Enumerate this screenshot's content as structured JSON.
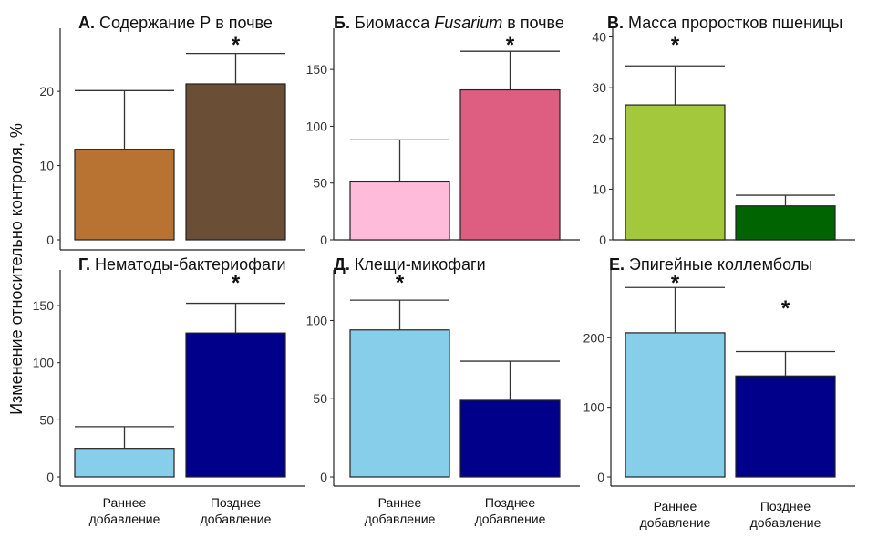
{
  "figure": {
    "ylabel": "Изменение относительно контроля, %",
    "categories": [
      "Раннее добавление",
      "Позднее добавление"
    ]
  },
  "chart_data": [
    {
      "type": "bar",
      "panel": "A",
      "title_prefix": "А.",
      "title_parts": [
        {
          "text": "Содержание Р в почве",
          "italic": false
        }
      ],
      "categories": [
        "Раннее добавление",
        "Позднее добавление"
      ],
      "values": [
        12.2,
        21.0
      ],
      "errors": [
        7.9,
        4.1
      ],
      "significant": [
        false,
        true
      ],
      "colors": [
        "#B87333",
        "#6B4E36"
      ],
      "ylim": [
        0,
        28
      ],
      "yticks": [
        0,
        10,
        20
      ],
      "show_xlabels": false
    },
    {
      "type": "bar",
      "panel": "B",
      "title_prefix": "Б.",
      "title_parts": [
        {
          "text": "Биомасса ",
          "italic": false
        },
        {
          "text": "Fusarium",
          "italic": true
        },
        {
          "text": " в почве",
          "italic": false
        }
      ],
      "categories": [
        "Раннее добавление",
        "Позднее добавление"
      ],
      "values": [
        51,
        132
      ],
      "errors": [
        37,
        34
      ],
      "significant": [
        false,
        true
      ],
      "colors": [
        "#FFBBD9",
        "#DE5E82"
      ],
      "ylim": [
        0,
        183
      ],
      "yticks": [
        0,
        50,
        100,
        150
      ],
      "show_xlabels": false
    },
    {
      "type": "bar",
      "panel": "C",
      "title_prefix": "В.",
      "title_parts": [
        {
          "text": "Масса проростков пшеницы",
          "italic": false
        }
      ],
      "categories": [
        "Раннее добавление",
        "Позднее добавление"
      ],
      "values": [
        26.6,
        6.7
      ],
      "errors": [
        7.7,
        2.1
      ],
      "significant": [
        true,
        false
      ],
      "colors": [
        "#A3C83B",
        "#006400"
      ],
      "ylim": [
        0,
        41
      ],
      "yticks": [
        0,
        10,
        20,
        30,
        40
      ],
      "show_xlabels": false
    },
    {
      "type": "bar",
      "panel": "D",
      "title_prefix": "Г.",
      "title_parts": [
        {
          "text": "Нематоды-бактериофаги",
          "italic": false
        }
      ],
      "categories": [
        "Раннее добавление",
        "Позднее добавление"
      ],
      "values": [
        25,
        126
      ],
      "errors": [
        19,
        26
      ],
      "significant": [
        false,
        true
      ],
      "colors": [
        "#87CEEB",
        "#00008B"
      ],
      "ylim": [
        0,
        178
      ],
      "yticks": [
        0,
        50,
        100,
        150
      ],
      "show_xlabels": true
    },
    {
      "type": "bar",
      "panel": "E",
      "title_prefix": "Д.",
      "title_parts": [
        {
          "text": "Клещи-микофаги",
          "italic": false
        }
      ],
      "categories": [
        "Раннее добавление",
        "Позднее добавление"
      ],
      "values": [
        94,
        49
      ],
      "errors": [
        19,
        25
      ],
      "significant": [
        true,
        false
      ],
      "colors": [
        "#87CEEB",
        "#00008B"
      ],
      "ylim": [
        0,
        130
      ],
      "yticks": [
        0,
        50,
        100
      ],
      "show_xlabels": true
    },
    {
      "type": "bar",
      "panel": "F",
      "title_prefix": "Е.",
      "title_parts": [
        {
          "text": "Эпигейные коллемболы",
          "italic": false
        }
      ],
      "categories": [
        "Раннее добавление",
        "Позднее добавление"
      ],
      "values": [
        207,
        145
      ],
      "errors": [
        65,
        35
      ],
      "significant": [
        true,
        true
      ],
      "colors": [
        "#87CEEB",
        "#00008B"
      ],
      "ylim": [
        0,
        292
      ],
      "yticks": [
        0,
        100,
        200
      ],
      "show_xlabels": true
    }
  ]
}
